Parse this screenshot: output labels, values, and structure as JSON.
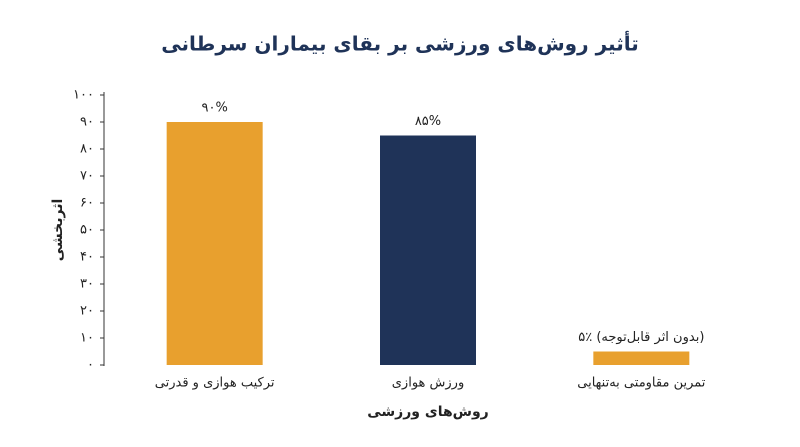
{
  "chart_data": {
    "type": "bar",
    "title": "تأثیر روش‌های ورزشی بر بقای بیماران سرطانی",
    "x_label": "روش‌های ورزشی",
    "y_label": "اثربخشی",
    "categories": [
      "ترکیب هوازی و قدرتی",
      "ورزش هوازی",
      "تمرین مقاومتی به‌تنهایی"
    ],
    "values": [
      90,
      85,
      5
    ],
    "value_labels": [
      "۹۰%",
      "۸۵%",
      "۵٪ (بدون اثر قابل‌توجه)"
    ],
    "colors": [
      "#e8a02e",
      "#1f3358",
      "#e8a02e"
    ],
    "ylim": [
      0,
      100
    ],
    "yticks": [
      {
        "value": 0,
        "label": "۰"
      },
      {
        "value": 10,
        "label": "۱۰"
      },
      {
        "value": 20,
        "label": "۲۰"
      },
      {
        "value": 30,
        "label": "۳۰"
      },
      {
        "value": 40,
        "label": "۴۰"
      },
      {
        "value": 50,
        "label": "۵۰"
      },
      {
        "value": 60,
        "label": "۶۰"
      },
      {
        "value": 70,
        "label": "۷۰"
      },
      {
        "value": 80,
        "label": "۸۰"
      },
      {
        "value": 90,
        "label": "۹۰"
      },
      {
        "value": 100,
        "label": "۱۰۰"
      }
    ],
    "grid": false
  }
}
